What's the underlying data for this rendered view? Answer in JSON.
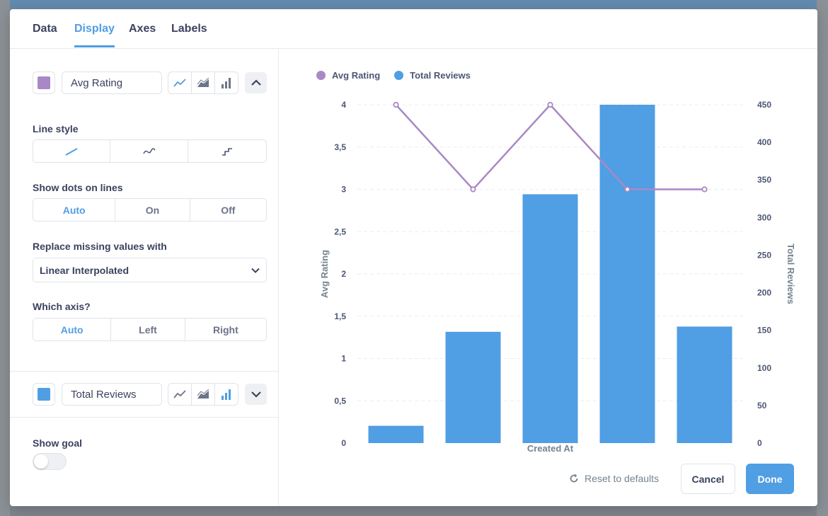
{
  "tabs": [
    {
      "label": "Data"
    },
    {
      "label": "Display"
    },
    {
      "label": "Axes"
    },
    {
      "label": "Labels"
    }
  ],
  "active_tab": "Display",
  "series": [
    {
      "name": "Avg Rating",
      "color": "#A989C5",
      "display": "line",
      "expanded": true
    },
    {
      "name": "Total Reviews",
      "color": "#509EE3",
      "display": "bar",
      "expanded": false
    }
  ],
  "settings": {
    "line_style_label": "Line style",
    "show_dots_label": "Show dots on lines",
    "show_dots_options": [
      "Auto",
      "On",
      "Off"
    ],
    "show_dots_selected": "Auto",
    "missing_label": "Replace missing values with",
    "missing_value": "Linear Interpolated",
    "axis_label": "Which axis?",
    "axis_options": [
      "Auto",
      "Left",
      "Right"
    ],
    "axis_selected": "Auto",
    "goal_label": "Show goal",
    "goal_on": false
  },
  "footer": {
    "reset_label": "Reset to defaults",
    "cancel_label": "Cancel",
    "done_label": "Done"
  },
  "chart_data": {
    "type": "bar",
    "title": "",
    "xlabel": "Created At",
    "ylabel_left": "Avg Rating",
    "ylabel_right": "Total Reviews",
    "categories": [
      "",
      "",
      "",
      "",
      ""
    ],
    "left_ticks": [
      "0",
      "0,5",
      "1",
      "1,5",
      "2",
      "2,5",
      "3",
      "3,5",
      "4"
    ],
    "right_ticks": [
      "0",
      "50",
      "100",
      "150",
      "200",
      "250",
      "300",
      "350",
      "400",
      "450"
    ],
    "ylim_left": [
      0,
      4
    ],
    "ylim_right": [
      0,
      450
    ],
    "grid": true,
    "legend_position": "top-left",
    "series": [
      {
        "name": "Avg Rating",
        "type": "line",
        "axis": "left",
        "values": [
          4,
          3,
          4,
          3,
          3
        ]
      },
      {
        "name": "Total Reviews",
        "type": "bar",
        "axis": "right",
        "values": [
          23,
          148,
          331,
          450,
          155
        ]
      }
    ]
  }
}
